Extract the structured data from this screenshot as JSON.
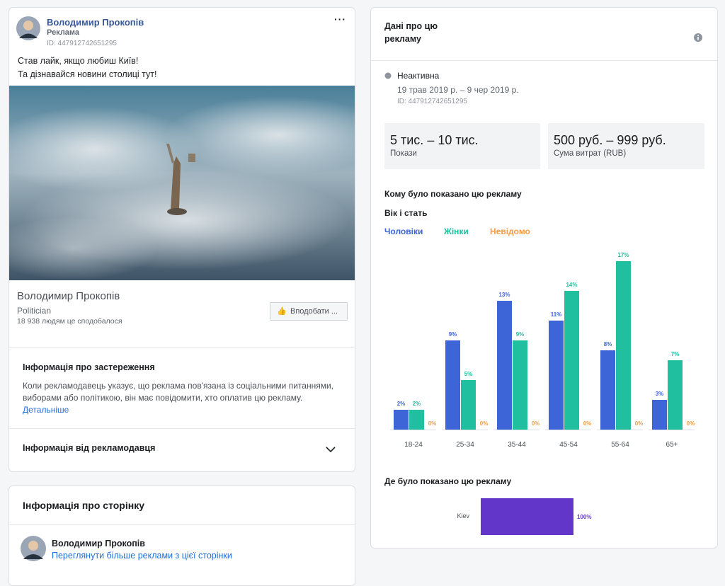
{
  "ad": {
    "advertiser": "Володимир Прокопів",
    "label": "Реклама",
    "id": "ID: 447912742651295",
    "text": [
      "Став лайк, якщо любиш Київ!",
      "Та дізнавайся новини столиці тут!"
    ],
    "page_name": "Володимир Прокопів",
    "page_category": "Politician",
    "page_likes": "18 938 людям це сподобалося",
    "like_button": "Вподобати ..."
  },
  "disclaimer": {
    "title": "Інформація про застереження",
    "text": "Коли рекламодавець указує, що реклама пов'язана із соціальними питаннями, виборами або політикою, він має повідомити, хто оплатив цю рекламу.",
    "link": "Детальніше"
  },
  "advertiser_info": {
    "title": "Інформація від рекламодавця"
  },
  "page_info": {
    "title": "Інформація про сторінку",
    "name": "Володимир Прокопів",
    "link": "Переглянути більше реклами з цієї сторінки"
  },
  "ad_data": {
    "title": [
      "Дані про цю",
      "рекламу"
    ],
    "status": "Неактивна",
    "dates": "19 трав 2019 р. – 9 чер 2019 р.",
    "id": "ID: 447912742651295",
    "impressions": "5 тис. – 10 тис.",
    "impressions_label": "Покази",
    "spend": "500 руб. – 999 руб.",
    "spend_label": "Сума витрат (RUB)",
    "audience_title": "Кому було показано цю рекламу",
    "age_gender_title": "Вік і стать",
    "location_title": "Де було показано цю рекламу"
  },
  "chart_data": [
    {
      "type": "bar",
      "categories": [
        "18-24",
        "25-34",
        "35-44",
        "45-54",
        "55-64",
        "65+"
      ],
      "series": [
        {
          "name": "Чоловіки",
          "color": "#3d65d8",
          "values": [
            2,
            9,
            13,
            11,
            8,
            3
          ],
          "value_labels": [
            "2%",
            "9%",
            "13%",
            "11%",
            "8%",
            "3%"
          ]
        },
        {
          "name": "Жінки",
          "color": "#1fbf9f",
          "values": [
            2,
            5,
            9,
            14,
            17,
            7
          ],
          "value_labels": [
            "2%",
            "5%",
            "9%",
            "14%",
            "17%",
            "7%"
          ]
        },
        {
          "name": "Невідомо",
          "color": "#f39c45",
          "values": [
            0,
            0,
            0,
            0,
            0,
            0
          ],
          "value_labels": [
            "0%",
            "0%",
            "0%",
            "0%",
            "0%",
            "0%"
          ]
        }
      ]
    },
    {
      "type": "hbar",
      "categories": [
        "Kiev"
      ],
      "values": [
        100
      ],
      "value_labels": [
        "100%"
      ],
      "color": "#6236c9"
    }
  ]
}
